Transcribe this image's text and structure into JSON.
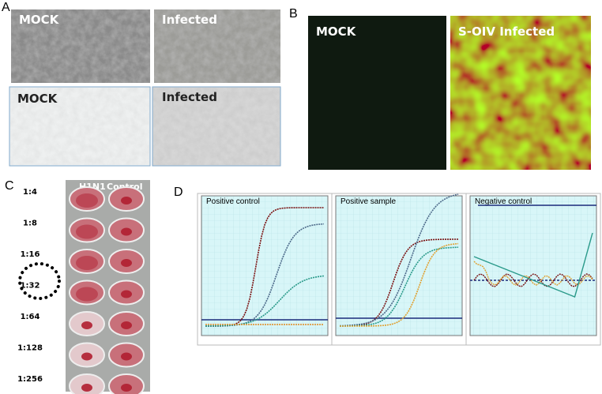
{
  "panels": {
    "a": {
      "letter": "A",
      "images": [
        "MOCK",
        "Infected",
        "MOCK",
        "Infected"
      ]
    },
    "b": {
      "letter": "B",
      "images": [
        "MOCK",
        "S-OIV Infected"
      ]
    },
    "c": {
      "letter": "C",
      "columns": [
        "H1N1",
        "Control"
      ],
      "dilutions": [
        "1:4",
        "1:8",
        "1:16",
        "1:32",
        "1:64",
        "1:128",
        "1:256"
      ]
    },
    "d": {
      "letter": "D",
      "plots": [
        "Positive control",
        "Positive sample",
        "Negative control"
      ]
    }
  }
}
